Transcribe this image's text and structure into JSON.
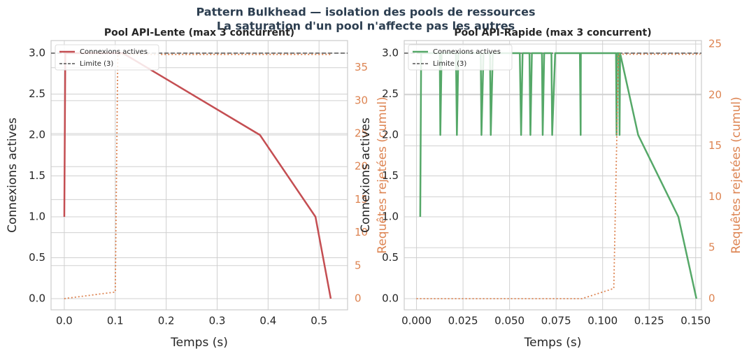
{
  "figure": {
    "title_lines": [
      "Pattern Bulkhead — isolation des pools de ressources",
      "La saturation d'un pool n'affecte pas les autres"
    ]
  },
  "chart_data": [
    {
      "type": "line",
      "title": "Pool API-Lente (max 3 concurrent)",
      "xlabel": "Temps (s)",
      "ylabel": "Connexions actives",
      "y2label": "Requêtes rejetées (cumul)",
      "y2color": "#dd8452",
      "xlim": [
        -0.026,
        0.556
      ],
      "xticks": [
        {
          "value": 0,
          "label": "0.0"
        },
        0.1,
        0.2,
        0.3,
        0.4,
        0.5
      ],
      "ylim": [
        -0.137,
        3.154
      ],
      "yticks": [
        {
          "value": 0,
          "label": "0.0"
        },
        0.5,
        {
          "value": 1,
          "label": "1.0"
        },
        1.5,
        {
          "value": 2,
          "label": "2.0"
        },
        2.5,
        {
          "value": 3,
          "label": "3.0"
        }
      ],
      "y2lim": [
        -1.7,
        39.1
      ],
      "y2ticks": [
        0,
        5,
        10,
        15,
        20,
        25,
        30,
        35
      ],
      "grid": true,
      "legend": "upper-left",
      "limit": {
        "name": "Limite (3)",
        "value": 3,
        "color": "#555555"
      },
      "series": [
        {
          "name": "Connexions actives",
          "color": "#c44e52",
          "axis": "y",
          "x": [
            0,
            0.001,
            0.002,
            0.115,
            0.384,
            0.493,
            0.523
          ],
          "values": [
            1,
            2,
            3,
            3,
            2,
            1,
            0
          ]
        },
        {
          "color": "#dd8452",
          "axis": "y2",
          "dotted": true,
          "x": [
            0,
            0.1,
            0.105,
            0.523
          ],
          "values": [
            0,
            1,
            37,
            37
          ]
        }
      ]
    },
    {
      "type": "line",
      "title": "Pool API-Rapide (max 3 concurrent)",
      "xlabel": "Temps (s)",
      "ylabel": "Connexions actives",
      "y2label": "Requêtes rejetées (cumul)",
      "y2color": "#dd8452",
      "xlim": [
        -0.0066,
        0.1531
      ],
      "xticks": [
        {
          "value": 0,
          "label": "0.000"
        },
        0.025,
        {
          "value": 0.05,
          "label": "0.050"
        },
        0.075,
        {
          "value": 0.1,
          "label": "0.100"
        },
        0.125,
        {
          "value": 0.15,
          "label": "0.150"
        }
      ],
      "ylim": [
        -0.137,
        3.154
      ],
      "yticks": [
        {
          "value": 0,
          "label": "0.0"
        },
        0.5,
        {
          "value": 1,
          "label": "1.0"
        },
        1.5,
        {
          "value": 2,
          "label": "2.0"
        },
        2.5,
        {
          "value": 3,
          "label": "3.0"
        }
      ],
      "y2lim": [
        -1.1,
        25.34
      ],
      "y2ticks": [
        0,
        5,
        10,
        15,
        20,
        25
      ],
      "grid": true,
      "legend": "upper-left",
      "limit": {
        "name": "Limite (3)",
        "value": 3,
        "color": "#555555"
      },
      "series": [
        {
          "name": "Connexions actives",
          "color": "#55a868",
          "axis": "y",
          "x": [
            0.002,
            0.0025,
            0.0125,
            0.0128,
            0.0135,
            0.0212,
            0.0217,
            0.0225,
            0.0345,
            0.0349,
            0.036,
            0.0395,
            0.0399,
            0.041,
            0.0555,
            0.0562,
            0.057,
            0.0607,
            0.0612,
            0.062,
            0.0674,
            0.0678,
            0.0686,
            0.0725,
            0.0729,
            0.0745,
            0.0878,
            0.0882,
            0.0883,
            0.1072,
            0.1075,
            0.1078,
            0.1088,
            0.1091,
            0.1094,
            0.1191,
            0.1407,
            0.1504
          ],
          "values": [
            1,
            3,
            3,
            2,
            3,
            3,
            2,
            3,
            3,
            2,
            3,
            3,
            2,
            3,
            3,
            2,
            3,
            3,
            2,
            3,
            3,
            2,
            3,
            3,
            2,
            3,
            3,
            2,
            3,
            3,
            2,
            3,
            3,
            2,
            3,
            2,
            1,
            0
          ]
        },
        {
          "color": "#dd8452",
          "axis": "y2",
          "dotted": true,
          "x": [
            0,
            0.089,
            0.106,
            0.1085,
            0.1525
          ],
          "values": [
            0,
            0,
            1,
            24,
            24
          ]
        }
      ]
    }
  ]
}
